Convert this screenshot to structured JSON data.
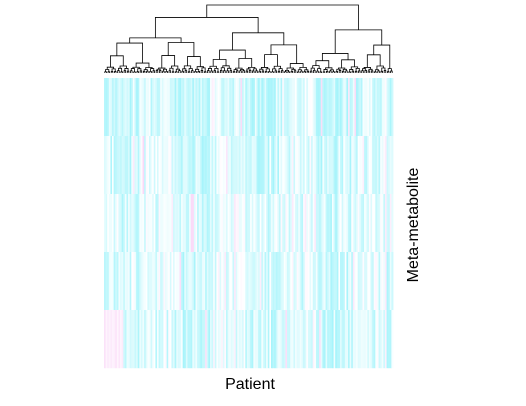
{
  "chart_data": {
    "type": "heatmap",
    "xlabel": "Patient",
    "ylabel": "Meta-metabolite",
    "n_rows": 5,
    "n_columns": 180,
    "dendrogram": "top",
    "colormap": {
      "low": "#a7f4fb",
      "mid": "#ffffff",
      "high": "#f6bdf2"
    },
    "value_range": [
      -1,
      1
    ],
    "rows": [
      {
        "pattern": "mostly-low",
        "mean": -0.55
      },
      {
        "pattern": "mostly-low",
        "mean": -0.45
      },
      {
        "pattern": "mixed",
        "mean": -0.35
      },
      {
        "pattern": "mixed",
        "mean": -0.4
      },
      {
        "pattern": "low-with-pink-left",
        "mean": -0.45
      }
    ]
  }
}
